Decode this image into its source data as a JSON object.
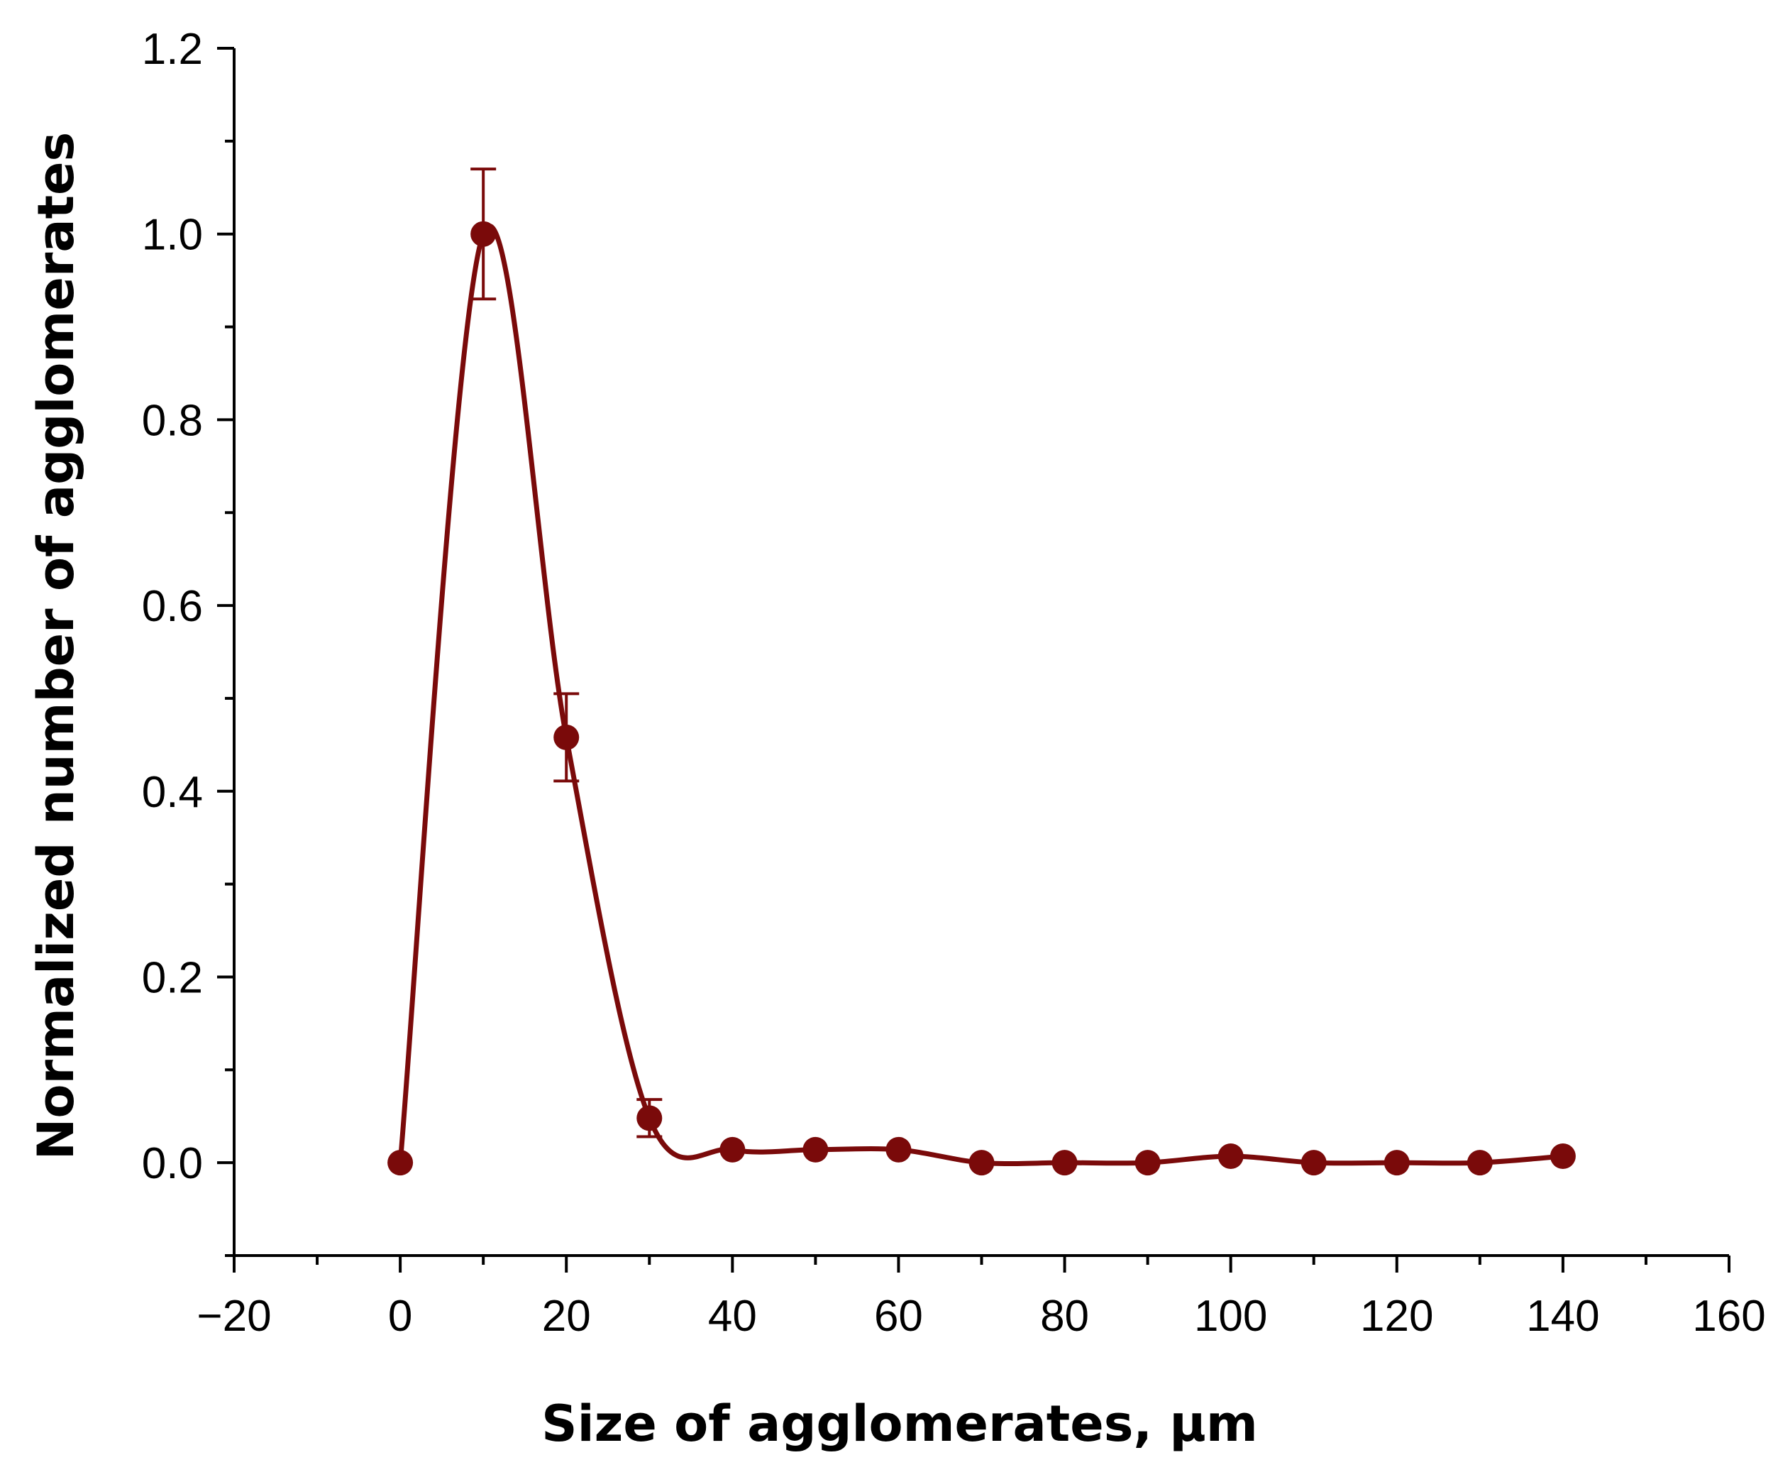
{
  "chart_data": {
    "type": "line",
    "title": "",
    "xlabel": "Size of agglomerates,   μm",
    "ylabel": "Normalized number of agglomerates",
    "xlim": [
      -20,
      160
    ],
    "ylim": [
      -0.1,
      1.2
    ],
    "x_ticks": [
      -20,
      0,
      20,
      40,
      60,
      80,
      100,
      120,
      140,
      160
    ],
    "x_tick_labels": [
      "−20",
      "0",
      "20",
      "40",
      "60",
      "80",
      "100",
      "120",
      "140",
      "160"
    ],
    "x_minor_step": 10,
    "y_ticks": [
      0.0,
      0.2,
      0.4,
      0.6,
      0.8,
      1.0,
      1.2
    ],
    "y_tick_labels": [
      "0.0",
      "0.2",
      "0.4",
      "0.6",
      "0.8",
      "1.0",
      "1.2"
    ],
    "y_minor_step": 0.1,
    "grid": false,
    "legend": "none",
    "smooth": true,
    "series": [
      {
        "name": "agglomerates",
        "color": "#7a0a0a",
        "x": [
          0,
          10,
          20,
          30,
          40,
          50,
          60,
          70,
          80,
          90,
          100,
          110,
          120,
          130,
          140
        ],
        "y": [
          0.0,
          1.0,
          0.458,
          0.048,
          0.014,
          0.014,
          0.014,
          0.0,
          0.0,
          0.0,
          0.007,
          0.0,
          0.0,
          0.0,
          0.007
        ],
        "error": [
          null,
          0.07,
          0.047,
          0.02,
          null,
          null,
          null,
          null,
          null,
          null,
          null,
          null,
          null,
          null,
          null
        ]
      }
    ]
  }
}
